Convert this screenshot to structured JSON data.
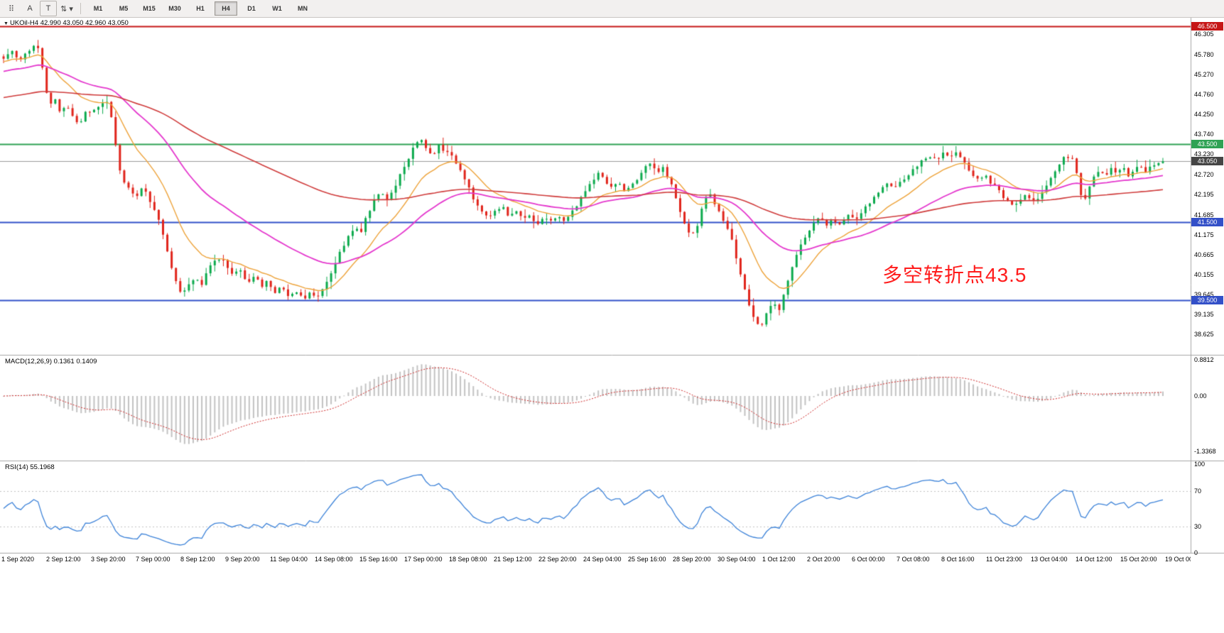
{
  "toolbar": {
    "tools": [
      {
        "name": "toolbar-grip-icon",
        "glyph": "⠿"
      },
      {
        "name": "arrow-tool-button",
        "glyph": "A"
      },
      {
        "name": "text-tool-button",
        "glyph": "T"
      },
      {
        "name": "cycle-symbols-button",
        "glyph": "⇅ ▾"
      }
    ],
    "timeframes": [
      "M1",
      "M5",
      "M15",
      "M30",
      "H1",
      "H4",
      "D1",
      "W1",
      "MN"
    ],
    "active_timeframe": "H4"
  },
  "symbol_info": {
    "collapse_icon": "▼",
    "text": "UKOil-H4 42.990 43.050 42.960 43.050"
  },
  "price_axis_labels": [
    "46.305",
    "45.780",
    "45.270",
    "44.760",
    "44.250",
    "43.740",
    "43.230",
    "42.720",
    "42.195",
    "41.685",
    "41.175",
    "40.665",
    "40.155",
    "39.645",
    "39.135",
    "38.625"
  ],
  "time_axis_labels": [
    "1 Sep 2020",
    "2 Sep 12:00",
    "3 Sep 20:00",
    "7 Sep 00:00",
    "8 Sep 12:00",
    "9 Sep 20:00",
    "11 Sep 04:00",
    "14 Sep 08:00",
    "15 Sep 16:00",
    "17 Sep 00:00",
    "18 Sep 08:00",
    "21 Sep 12:00",
    "22 Sep 20:00",
    "24 Sep 04:00",
    "25 Sep 16:00",
    "28 Sep 20:00",
    "30 Sep 04:00",
    "1 Oct 12:00",
    "2 Oct 20:00",
    "6 Oct 00:00",
    "7 Oct 08:00",
    "8 Oct 16:00",
    "11 Oct 23:00",
    "13 Oct 04:00",
    "14 Oct 12:00",
    "15 Oct 20:00",
    "19 Oct 00:00"
  ],
  "panels": {
    "macd": {
      "label": "MACD(12,26,9) 0.1361 0.1409",
      "axis_labels": [
        "0.8812",
        "0.00",
        "-1.3368"
      ]
    },
    "rsi": {
      "label": "RSI(14) 55.1968",
      "axis_labels": [
        "100",
        "70",
        "30",
        "0"
      ]
    }
  },
  "annotation": {
    "text": "多空转折点43.5",
    "color": "#ff1b1b"
  },
  "chart_data": {
    "type": "candlestick",
    "symbol": "UKOil",
    "timeframe": "H4",
    "ohlc_current": {
      "open": 42.99,
      "high": 43.05,
      "low": 42.96,
      "close": 43.05
    },
    "y_axis_range": [
      38.1,
      46.74
    ],
    "bars": 270,
    "close_path_anchors": [
      [
        0.0,
        45.7
      ],
      [
        0.008,
        45.9
      ],
      [
        0.014,
        45.6
      ],
      [
        0.02,
        45.85
      ],
      [
        0.026,
        46.0
      ],
      [
        0.031,
        45.9
      ],
      [
        0.035,
        45.2
      ],
      [
        0.039,
        44.45
      ],
      [
        0.044,
        44.65
      ],
      [
        0.049,
        44.3
      ],
      [
        0.055,
        44.45
      ],
      [
        0.06,
        44.15
      ],
      [
        0.065,
        44.0
      ],
      [
        0.071,
        44.3
      ],
      [
        0.077,
        44.35
      ],
      [
        0.083,
        44.5
      ],
      [
        0.088,
        44.65
      ],
      [
        0.092,
        44.4
      ],
      [
        0.096,
        43.6
      ],
      [
        0.1,
        42.8
      ],
      [
        0.105,
        42.45
      ],
      [
        0.11,
        42.3
      ],
      [
        0.115,
        42.15
      ],
      [
        0.12,
        42.4
      ],
      [
        0.126,
        42.05
      ],
      [
        0.131,
        41.75
      ],
      [
        0.136,
        41.4
      ],
      [
        0.141,
        40.8
      ],
      [
        0.146,
        40.25
      ],
      [
        0.151,
        39.8
      ],
      [
        0.155,
        39.65
      ],
      [
        0.16,
        39.9
      ],
      [
        0.165,
        40.1
      ],
      [
        0.17,
        39.85
      ],
      [
        0.175,
        40.25
      ],
      [
        0.181,
        40.45
      ],
      [
        0.187,
        40.6
      ],
      [
        0.192,
        40.4
      ],
      [
        0.198,
        40.1
      ],
      [
        0.204,
        40.3
      ],
      [
        0.21,
        39.95
      ],
      [
        0.216,
        40.15
      ],
      [
        0.222,
        39.85
      ],
      [
        0.228,
        40.0
      ],
      [
        0.234,
        39.7
      ],
      [
        0.24,
        39.85
      ],
      [
        0.246,
        39.6
      ],
      [
        0.252,
        39.75
      ],
      [
        0.258,
        39.55
      ],
      [
        0.264,
        39.65
      ],
      [
        0.27,
        39.6
      ],
      [
        0.277,
        39.8
      ],
      [
        0.284,
        40.3
      ],
      [
        0.291,
        40.8
      ],
      [
        0.297,
        41.1
      ],
      [
        0.303,
        41.35
      ],
      [
        0.308,
        41.2
      ],
      [
        0.314,
        41.7
      ],
      [
        0.32,
        42.05
      ],
      [
        0.326,
        42.25
      ],
      [
        0.331,
        42.1
      ],
      [
        0.337,
        42.35
      ],
      [
        0.343,
        42.75
      ],
      [
        0.349,
        43.1
      ],
      [
        0.355,
        43.5
      ],
      [
        0.36,
        43.65
      ],
      [
        0.365,
        43.35
      ],
      [
        0.37,
        43.15
      ],
      [
        0.375,
        43.45
      ],
      [
        0.38,
        43.25
      ],
      [
        0.385,
        43.3
      ],
      [
        0.39,
        43.0
      ],
      [
        0.395,
        42.75
      ],
      [
        0.4,
        42.45
      ],
      [
        0.406,
        42.05
      ],
      [
        0.412,
        41.75
      ],
      [
        0.418,
        41.6
      ],
      [
        0.424,
        41.75
      ],
      [
        0.43,
        41.9
      ],
      [
        0.436,
        41.65
      ],
      [
        0.442,
        41.8
      ],
      [
        0.448,
        41.55
      ],
      [
        0.454,
        41.7
      ],
      [
        0.46,
        41.45
      ],
      [
        0.466,
        41.6
      ],
      [
        0.472,
        41.5
      ],
      [
        0.478,
        41.65
      ],
      [
        0.484,
        41.55
      ],
      [
        0.49,
        41.75
      ],
      [
        0.496,
        42.0
      ],
      [
        0.502,
        42.3
      ],
      [
        0.508,
        42.55
      ],
      [
        0.514,
        42.75
      ],
      [
        0.519,
        42.55
      ],
      [
        0.524,
        42.35
      ],
      [
        0.53,
        42.55
      ],
      [
        0.536,
        42.3
      ],
      [
        0.542,
        42.45
      ],
      [
        0.548,
        42.65
      ],
      [
        0.554,
        42.9
      ],
      [
        0.559,
        43.0
      ],
      [
        0.564,
        42.8
      ],
      [
        0.569,
        42.9
      ],
      [
        0.574,
        42.6
      ],
      [
        0.579,
        42.2
      ],
      [
        0.584,
        41.75
      ],
      [
        0.589,
        41.3
      ],
      [
        0.594,
        41.15
      ],
      [
        0.599,
        41.45
      ],
      [
        0.604,
        42.0
      ],
      [
        0.609,
        42.25
      ],
      [
        0.614,
        41.95
      ],
      [
        0.619,
        41.65
      ],
      [
        0.624,
        41.4
      ],
      [
        0.629,
        40.95
      ],
      [
        0.634,
        40.35
      ],
      [
        0.639,
        39.8
      ],
      [
        0.644,
        39.3
      ],
      [
        0.649,
        38.95
      ],
      [
        0.654,
        38.85
      ],
      [
        0.659,
        39.2
      ],
      [
        0.664,
        39.45
      ],
      [
        0.669,
        39.25
      ],
      [
        0.674,
        39.75
      ],
      [
        0.68,
        40.3
      ],
      [
        0.686,
        40.8
      ],
      [
        0.692,
        41.15
      ],
      [
        0.698,
        41.4
      ],
      [
        0.704,
        41.6
      ],
      [
        0.71,
        41.45
      ],
      [
        0.716,
        41.55
      ],
      [
        0.722,
        41.4
      ],
      [
        0.728,
        41.65
      ],
      [
        0.734,
        41.55
      ],
      [
        0.74,
        41.75
      ],
      [
        0.746,
        41.95
      ],
      [
        0.752,
        42.15
      ],
      [
        0.758,
        42.35
      ],
      [
        0.764,
        42.5
      ],
      [
        0.769,
        42.35
      ],
      [
        0.774,
        42.55
      ],
      [
        0.78,
        42.7
      ],
      [
        0.786,
        42.9
      ],
      [
        0.792,
        43.05
      ],
      [
        0.798,
        43.2
      ],
      [
        0.804,
        43.1
      ],
      [
        0.81,
        43.25
      ],
      [
        0.816,
        43.15
      ],
      [
        0.822,
        43.3
      ],
      [
        0.828,
        43.05
      ],
      [
        0.834,
        42.8
      ],
      [
        0.84,
        42.6
      ],
      [
        0.846,
        42.7
      ],
      [
        0.852,
        42.5
      ],
      [
        0.858,
        42.3
      ],
      [
        0.864,
        42.1
      ],
      [
        0.87,
        41.9
      ],
      [
        0.876,
        42.05
      ],
      [
        0.882,
        42.2
      ],
      [
        0.888,
        42.0
      ],
      [
        0.894,
        42.15
      ],
      [
        0.9,
        42.4
      ],
      [
        0.906,
        42.75
      ],
      [
        0.912,
        43.05
      ],
      [
        0.917,
        43.2
      ],
      [
        0.922,
        43.1
      ],
      [
        0.927,
        42.6
      ],
      [
        0.931,
        41.95
      ],
      [
        0.935,
        42.3
      ],
      [
        0.94,
        42.6
      ],
      [
        0.945,
        42.8
      ],
      [
        0.95,
        42.65
      ],
      [
        0.955,
        42.85
      ],
      [
        0.96,
        42.75
      ],
      [
        0.965,
        42.9
      ],
      [
        0.97,
        42.7
      ],
      [
        0.975,
        42.85
      ],
      [
        0.98,
        42.95
      ],
      [
        0.985,
        42.8
      ],
      [
        0.99,
        43.0
      ],
      [
        0.995,
        42.96
      ],
      [
        1.0,
        43.05
      ]
    ],
    "horizontal_lines": [
      {
        "price": 46.5,
        "label": "46.500",
        "color": "#c61616",
        "badge": "#c61616"
      },
      {
        "price": 43.5,
        "label": "43.500",
        "color": "#2fa254",
        "badge": "#2fa254"
      },
      {
        "price": 41.5,
        "label": "41.500",
        "color": "#3350c8",
        "badge": "#3350c8"
      },
      {
        "price": 39.5,
        "label": "39.500",
        "color": "#3350c8",
        "badge": "#3350c8"
      }
    ],
    "current_price": {
      "value": 43.05,
      "label": "43.050",
      "line_color": "#9b9b9b",
      "badge": "#454545"
    },
    "candle_colors": {
      "up": "#0caa4d",
      "down": "#e0241b"
    },
    "moving_averages": [
      {
        "name": "fast-ma",
        "period": 14,
        "seed": 45.6,
        "color": "#eda33b",
        "width": 1.4
      },
      {
        "name": "medium-ma",
        "period": 40,
        "seed": 45.35,
        "color": "#e437cd",
        "width": 1.8
      },
      {
        "name": "slow-ma",
        "period": 120,
        "seed": 44.68,
        "color": "#cf3b3b",
        "width": 1.6
      }
    ],
    "indicators": {
      "macd": {
        "fast": 12,
        "slow": 26,
        "signal": 9,
        "value": 0.1361,
        "signal_value": 0.1409,
        "range": [
          -1.3368,
          0.8812
        ],
        "histogram_color": "#c2c2c2",
        "signal_color": "#cc2525"
      },
      "rsi": {
        "period": 14,
        "value": 55.1968,
        "levels": [
          30,
          70
        ],
        "range": [
          0,
          100
        ],
        "line_color": "#3c82d8",
        "level_color": "#c2c2c2"
      }
    }
  }
}
